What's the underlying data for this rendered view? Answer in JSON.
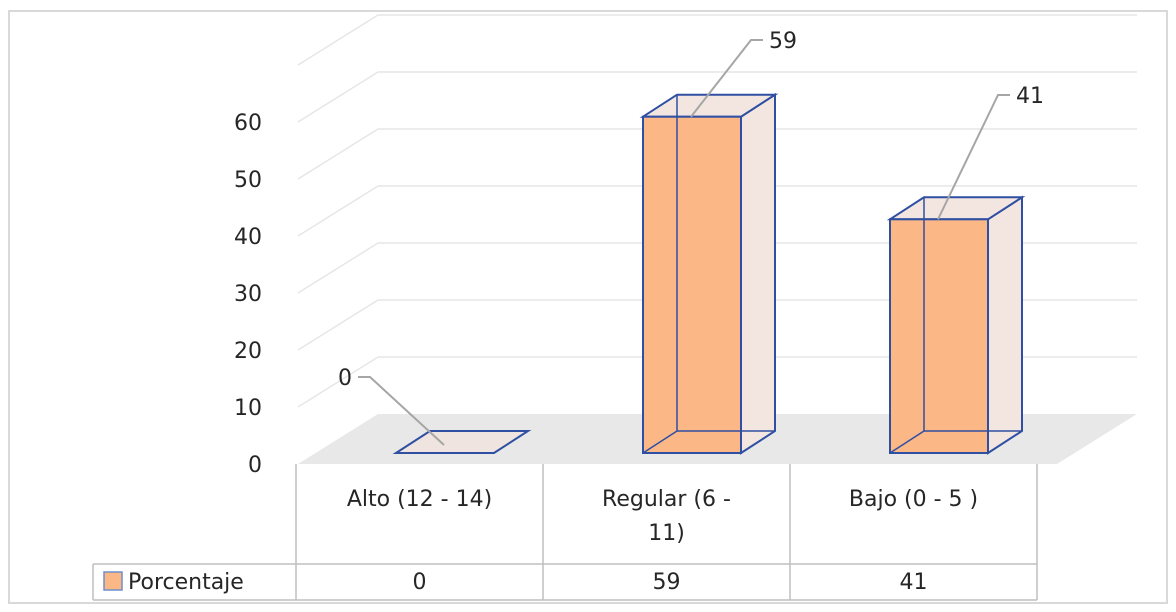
{
  "chart_data": {
    "type": "bar",
    "categories": [
      "Alto (12 - 14)",
      "Regular (6 - 11)",
      "Bajo (0 - 5 )"
    ],
    "category_lines": [
      [
        "Alto (12 - 14)"
      ],
      [
        "Regular (6 -",
        "11)"
      ],
      [
        "Bajo (0 - 5 )"
      ]
    ],
    "series": [
      {
        "name": "Porcentaje",
        "values": [
          0,
          59,
          41
        ],
        "color": "#fbb785"
      }
    ],
    "data_labels": [
      "0",
      "59",
      "41"
    ],
    "table_values": [
      "0",
      "59",
      "41"
    ],
    "yticks": [
      "0",
      "10",
      "20",
      "30",
      "40",
      "50",
      "60"
    ],
    "ylim": [
      0,
      60
    ],
    "grid": true,
    "legend": "data table",
    "bar_style": "3d",
    "colors": {
      "bar_fill": "#fbb785",
      "bar_edge": "#2f4fa2",
      "floor": "#e8e8e8",
      "grid": "#e6e6e6",
      "leader": "#a6a6a6"
    }
  }
}
